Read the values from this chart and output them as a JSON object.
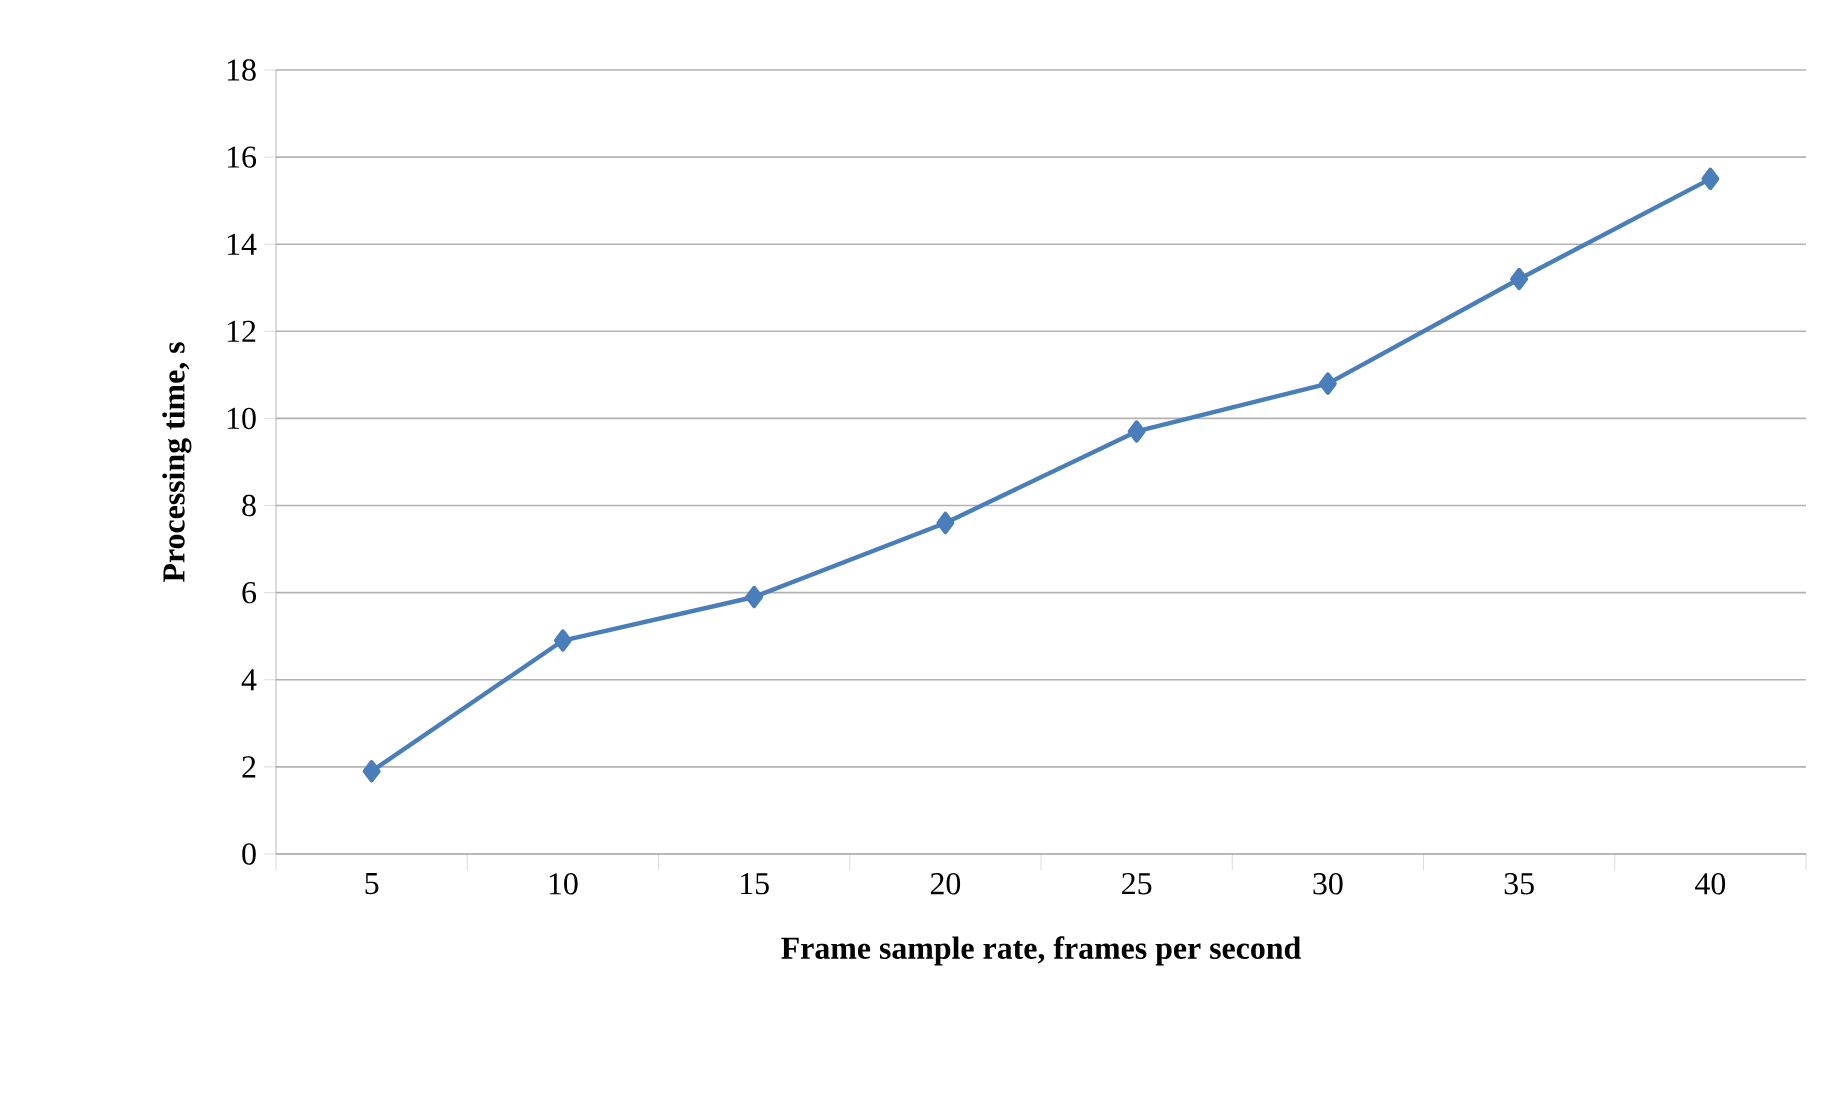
{
  "chart_data": {
    "type": "line",
    "xlabel": "Frame sample rate, frames per second",
    "ylabel": "Processing time, s",
    "categories": [
      "5",
      "10",
      "15",
      "20",
      "25",
      "30",
      "35",
      "40"
    ],
    "series": [
      {
        "color": "#4a7ebb",
        "values": [
          1.9,
          4.9,
          5.9,
          7.6,
          9.7,
          10.8,
          13.2,
          15.5
        ]
      }
    ],
    "ylim": [
      0,
      18
    ],
    "yticks": [
      0,
      2,
      4,
      6,
      8,
      10,
      12,
      14,
      16,
      18
    ],
    "grid": "y",
    "marker": "diamond",
    "line_style": "solid"
  }
}
